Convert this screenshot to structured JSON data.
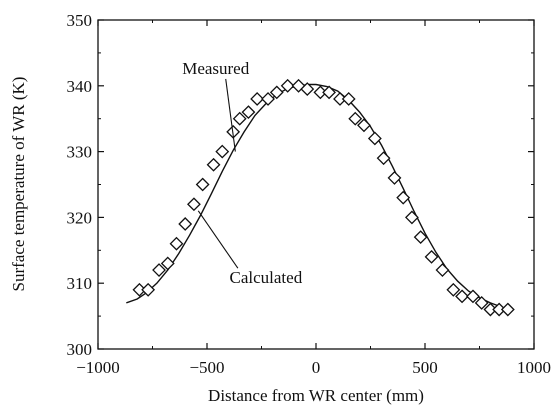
{
  "chart_data": {
    "type": "scatter",
    "title": "",
    "xlabel": "Distance from WR center (mm)",
    "ylabel": "Surface temperature of  WR (K)",
    "xlim": [
      -1000,
      1000
    ],
    "ylim": [
      300,
      350
    ],
    "x_ticks": [
      -1000,
      -500,
      0,
      500,
      1000
    ],
    "x_tick_labels": [
      "−1000",
      "−500",
      "0",
      "500",
      "1000"
    ],
    "y_ticks": [
      300,
      310,
      320,
      330,
      340,
      350
    ],
    "y_tick_labels": [
      "300",
      "310",
      "320",
      "330",
      "340",
      "350"
    ],
    "grid": false,
    "series": [
      {
        "name": "Measured",
        "marker": "diamond",
        "x": [
          -810,
          -770,
          -720,
          -680,
          -640,
          -600,
          -560,
          -520,
          -470,
          -430,
          -380,
          -350,
          -310,
          -270,
          -220,
          -180,
          -130,
          -80,
          -40,
          20,
          60,
          110,
          150,
          180,
          220,
          270,
          310,
          360,
          400,
          440,
          480,
          530,
          580,
          630,
          670,
          720,
          760,
          800,
          840,
          880
        ],
        "y": [
          309,
          309,
          312,
          313,
          316,
          319,
          322,
          325,
          328,
          330,
          333,
          335,
          336,
          338,
          338,
          339,
          340,
          340,
          339.5,
          339,
          339,
          338,
          338,
          335,
          334,
          332,
          329,
          326,
          323,
          320,
          317,
          314,
          312,
          309,
          308,
          308,
          307,
          306,
          306,
          306
        ]
      },
      {
        "name": "Calculated",
        "line": "solid",
        "x": [
          -870,
          -820,
          -780,
          -730,
          -680,
          -630,
          -580,
          -530,
          -480,
          -430,
          -380,
          -330,
          -280,
          -230,
          -180,
          -130,
          -80,
          -30,
          0,
          50,
          100,
          150,
          200,
          250,
          300,
          350,
          400,
          450,
          500,
          550,
          600,
          650,
          700,
          750,
          800,
          850,
          880
        ],
        "y": [
          307,
          307.6,
          308.5,
          310,
          312,
          314.5,
          317.3,
          320.3,
          323.6,
          327,
          330.2,
          333,
          335.5,
          337.3,
          338.7,
          339.6,
          340,
          340.2,
          340.2,
          339.9,
          339.2,
          337.8,
          336,
          333.8,
          331,
          327.8,
          324.4,
          320.9,
          317.6,
          314.7,
          312.2,
          310.3,
          308.8,
          307.8,
          307,
          306.4,
          306
        ]
      }
    ],
    "annotations": [
      {
        "text": "Measured",
        "x": -460,
        "y": 341.8,
        "pointer_to": [
          -370,
          330
        ]
      },
      {
        "text": "Calculated",
        "x": -230,
        "y": 310,
        "pointer_to": [
          -540,
          321
        ]
      }
    ]
  }
}
